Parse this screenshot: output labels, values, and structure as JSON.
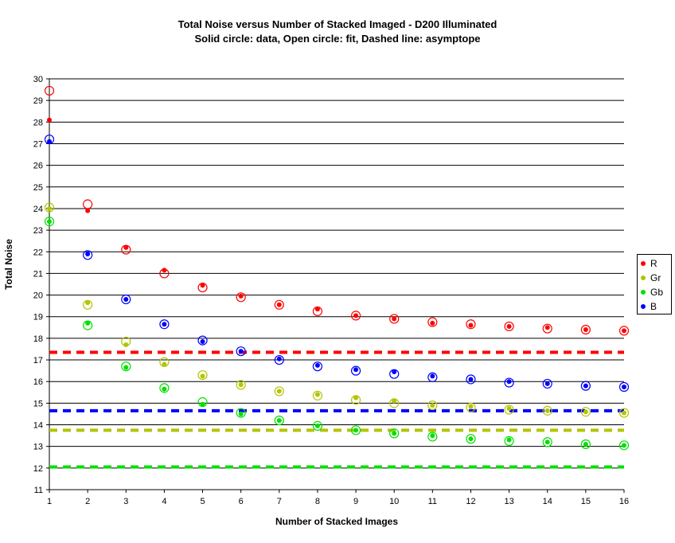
{
  "chart_data": {
    "type": "scatter",
    "title": "Total Noise versus Number of Stacked Imaged - D200 Illuminated",
    "subtitle": "Solid circle: data, Open circle: fit, Dashed line: asymptope",
    "xlabel": "Number of Stacked Images",
    "ylabel": "Total Noise",
    "xlim": [
      1,
      16
    ],
    "ylim": [
      11,
      30
    ],
    "x": [
      1,
      2,
      3,
      4,
      5,
      6,
      7,
      8,
      9,
      10,
      11,
      12,
      13,
      14,
      15,
      16
    ],
    "grid": "horizontal",
    "legend_position": "right",
    "series": [
      {
        "name": "R",
        "color": "#ff0000",
        "data": [
          28.1,
          23.9,
          22.2,
          21.15,
          20.45,
          19.95,
          19.55,
          19.35,
          19.05,
          18.9,
          18.7,
          18.6,
          18.55,
          18.5,
          18.4,
          18.35
        ],
        "fit": [
          29.45,
          24.2,
          22.1,
          21.0,
          20.35,
          19.9,
          19.55,
          19.25,
          19.05,
          18.9,
          18.75,
          18.65,
          18.55,
          18.45,
          18.4,
          18.35
        ],
        "asymptote": 17.35
      },
      {
        "name": "Gr",
        "color": "#b3c400",
        "data": [
          24.0,
          19.65,
          17.7,
          16.8,
          16.25,
          15.85,
          15.55,
          15.4,
          15.25,
          15.1,
          14.9,
          14.85,
          14.75,
          14.65,
          14.6,
          14.55
        ],
        "fit": [
          24.05,
          19.55,
          17.85,
          16.9,
          16.3,
          15.85,
          15.55,
          15.35,
          15.15,
          15.0,
          14.9,
          14.8,
          14.7,
          14.65,
          14.6,
          14.55
        ],
        "asymptote": 13.75
      },
      {
        "name": "Gb",
        "color": "#00e000",
        "data": [
          23.4,
          18.7,
          16.65,
          15.65,
          14.95,
          14.5,
          14.2,
          13.95,
          13.75,
          13.6,
          13.5,
          13.35,
          13.3,
          13.2,
          13.1,
          13.05
        ],
        "fit": [
          23.4,
          18.6,
          16.7,
          15.7,
          15.05,
          14.55,
          14.2,
          13.95,
          13.75,
          13.6,
          13.45,
          13.35,
          13.25,
          13.2,
          13.1,
          13.05
        ],
        "asymptote": 12.05
      },
      {
        "name": "B",
        "color": "#0000ff",
        "data": [
          27.1,
          21.9,
          19.8,
          18.65,
          17.85,
          17.4,
          17.05,
          16.75,
          16.55,
          16.45,
          16.25,
          16.1,
          16.0,
          15.9,
          15.8,
          15.75
        ],
        "fit": [
          27.2,
          21.85,
          19.8,
          18.65,
          17.9,
          17.4,
          17.0,
          16.7,
          16.5,
          16.35,
          16.2,
          16.1,
          15.95,
          15.9,
          15.8,
          15.75
        ],
        "asymptote": 14.65
      }
    ]
  }
}
